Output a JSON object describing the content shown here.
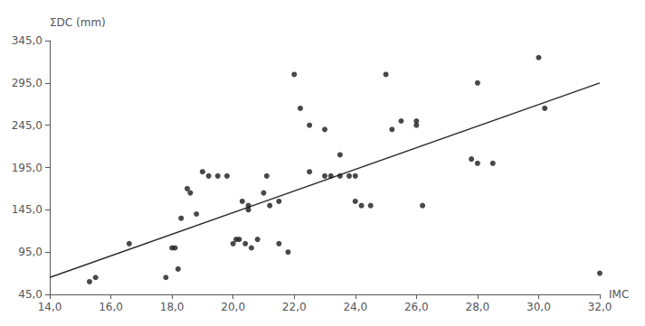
{
  "chart_data": {
    "type": "scatter",
    "xlabel": "IMC",
    "ylabel": "ΣDC (mm)",
    "series": [
      {
        "type": "scatter",
        "color": "#1a1a1a",
        "marker": "circle",
        "x": [
          15.3,
          15.5,
          16.6,
          17.8,
          18.0,
          18.1,
          18.2,
          18.3,
          18.5,
          18.6,
          18.8,
          19.0,
          19.2,
          19.5,
          19.8,
          20.0,
          20.1,
          20.2,
          20.3,
          20.4,
          20.5,
          20.5,
          20.6,
          20.8,
          21.0,
          21.1,
          21.2,
          21.5,
          21.5,
          21.8,
          22.0,
          22.2,
          22.5,
          22.5,
          23.0,
          23.0,
          23.2,
          23.5,
          23.5,
          23.8,
          24.0,
          24.0,
          24.2,
          24.5,
          25.0,
          25.2,
          25.5,
          26.0,
          26.0,
          26.2,
          27.8,
          28.0,
          28.0,
          28.5,
          30.0,
          30.2,
          32.0
        ],
        "values": [
          60,
          65,
          105,
          65,
          100,
          100,
          75,
          135,
          170,
          165,
          140,
          190,
          185,
          185,
          185,
          105,
          110,
          110,
          155,
          105,
          145,
          150,
          100,
          110,
          165,
          185,
          150,
          155,
          105,
          95,
          305,
          265,
          245,
          190,
          185,
          240,
          185,
          210,
          185,
          185,
          185,
          155,
          150,
          150,
          305,
          240,
          250,
          250,
          245,
          150,
          205,
          200,
          295,
          200,
          325,
          265,
          70
        ]
      },
      {
        "type": "line",
        "color": "#2d2d2d",
        "line_style": "solid",
        "x": [
          14.0,
          32.0
        ],
        "values": [
          65.0,
          295.0
        ]
      }
    ],
    "xlim": [
      14.0,
      32.0
    ],
    "ylim": [
      45.0,
      345.0
    ],
    "xticks": [
      {
        "value": 14.0,
        "label": "14,0"
      },
      {
        "value": 16.0,
        "label": "16,0"
      },
      {
        "value": 18.0,
        "label": "18,0"
      },
      {
        "value": 20.0,
        "label": "20,0"
      },
      {
        "value": 22.0,
        "label": "22,0"
      },
      {
        "value": 24.0,
        "label": "24,0"
      },
      {
        "value": 26.0,
        "label": "26,0"
      },
      {
        "value": 28.0,
        "label": "28,0"
      },
      {
        "value": 30.0,
        "label": "30,0"
      },
      {
        "value": 32.0,
        "label": "32,0"
      }
    ],
    "yticks": [
      {
        "value": 45.0,
        "label": "45,0"
      },
      {
        "value": 95.0,
        "label": "95,0"
      },
      {
        "value": 145.0,
        "label": "145,0"
      },
      {
        "value": 195.0,
        "label": "195,0"
      },
      {
        "value": 245.0,
        "label": "245,0"
      },
      {
        "value": 295.0,
        "label": "295,0"
      },
      {
        "value": 345.0,
        "label": "345,0"
      }
    ],
    "grid": false
  }
}
